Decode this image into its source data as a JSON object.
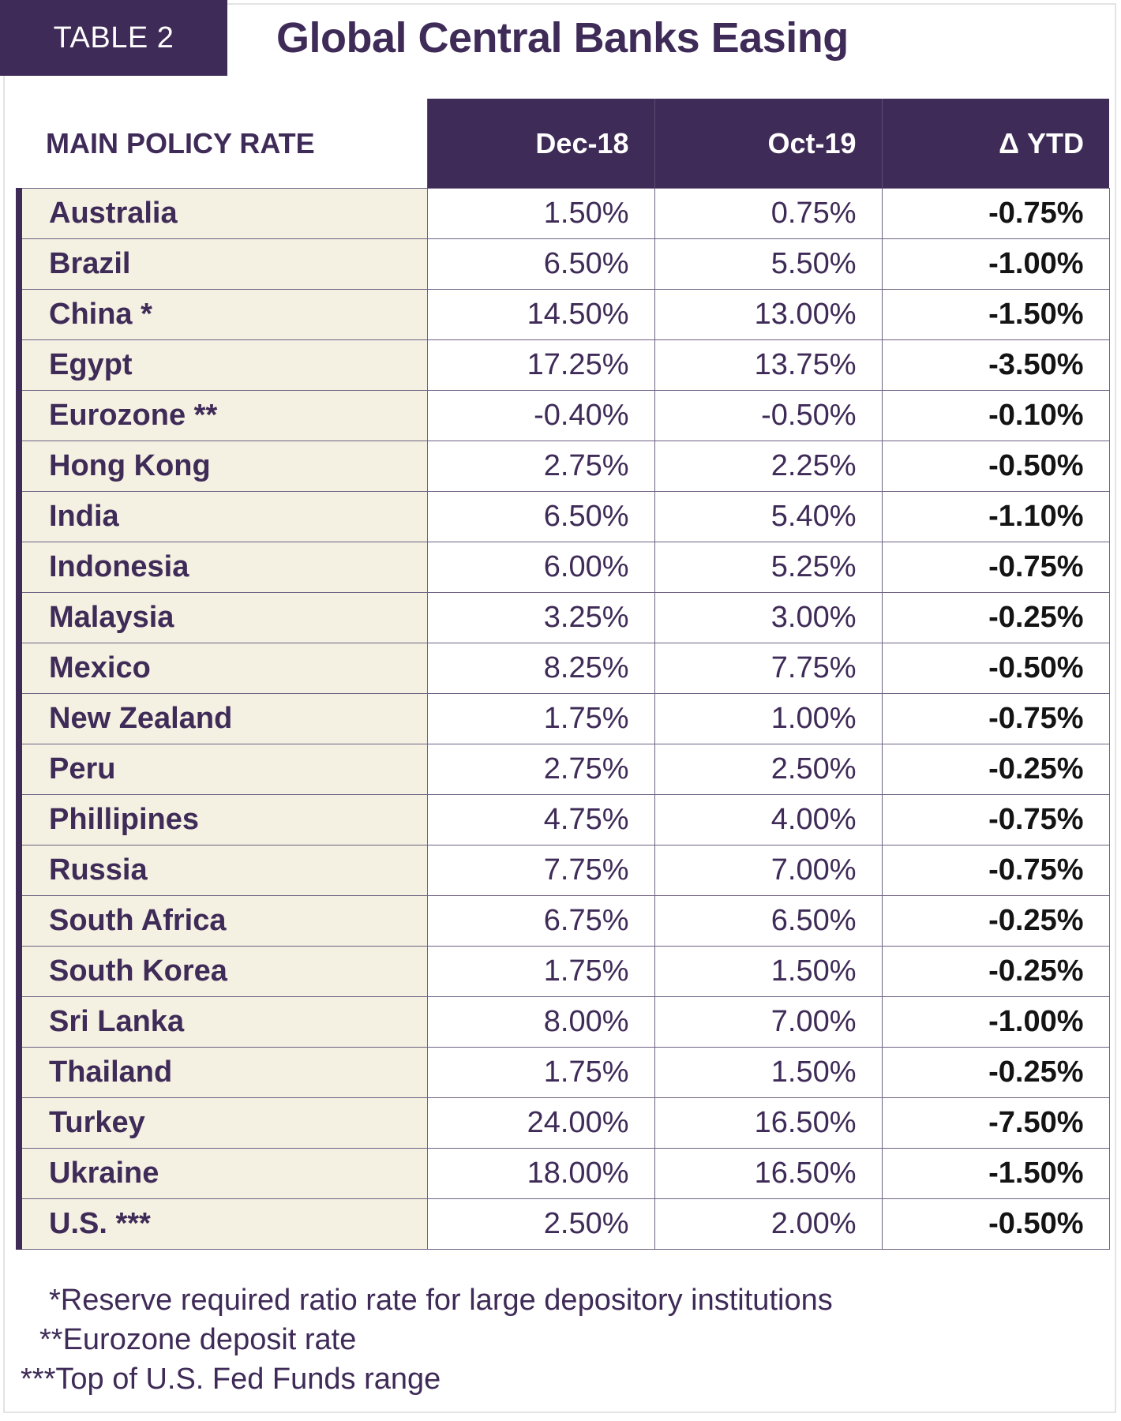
{
  "header": {
    "tag": "TABLE 2",
    "title": "Global Central Banks Easing"
  },
  "table": {
    "columns": [
      "MAIN POLICY RATE",
      "Dec-18",
      "Oct-19",
      "Δ YTD"
    ],
    "rows": [
      {
        "country": "Australia",
        "dec18": "1.50%",
        "oct19": "0.75%",
        "ytd": "-0.75%"
      },
      {
        "country": "Brazil",
        "dec18": "6.50%",
        "oct19": "5.50%",
        "ytd": "-1.00%"
      },
      {
        "country": "China *",
        "dec18": "14.50%",
        "oct19": "13.00%",
        "ytd": "-1.50%"
      },
      {
        "country": "Egypt",
        "dec18": "17.25%",
        "oct19": "13.75%",
        "ytd": "-3.50%"
      },
      {
        "country": "Eurozone **",
        "dec18": "-0.40%",
        "oct19": "-0.50%",
        "ytd": "-0.10%"
      },
      {
        "country": "Hong Kong",
        "dec18": "2.75%",
        "oct19": "2.25%",
        "ytd": "-0.50%"
      },
      {
        "country": "India",
        "dec18": "6.50%",
        "oct19": "5.40%",
        "ytd": "-1.10%"
      },
      {
        "country": "Indonesia",
        "dec18": "6.00%",
        "oct19": "5.25%",
        "ytd": "-0.75%"
      },
      {
        "country": "Malaysia",
        "dec18": "3.25%",
        "oct19": "3.00%",
        "ytd": "-0.25%"
      },
      {
        "country": "Mexico",
        "dec18": "8.25%",
        "oct19": "7.75%",
        "ytd": "-0.50%"
      },
      {
        "country": "New Zealand",
        "dec18": "1.75%",
        "oct19": "1.00%",
        "ytd": "-0.75%"
      },
      {
        "country": "Peru",
        "dec18": "2.75%",
        "oct19": "2.50%",
        "ytd": "-0.25%"
      },
      {
        "country": "Phillipines",
        "dec18": "4.75%",
        "oct19": "4.00%",
        "ytd": "-0.75%"
      },
      {
        "country": "Russia",
        "dec18": "7.75%",
        "oct19": "7.00%",
        "ytd": "-0.75%"
      },
      {
        "country": "South Africa",
        "dec18": "6.75%",
        "oct19": "6.50%",
        "ytd": "-0.25%"
      },
      {
        "country": "South Korea",
        "dec18": "1.75%",
        "oct19": "1.50%",
        "ytd": "-0.25%"
      },
      {
        "country": "Sri Lanka",
        "dec18": "8.00%",
        "oct19": "7.00%",
        "ytd": "-1.00%"
      },
      {
        "country": "Thailand",
        "dec18": "1.75%",
        "oct19": "1.50%",
        "ytd": "-0.25%"
      },
      {
        "country": "Turkey",
        "dec18": "24.00%",
        "oct19": "16.50%",
        "ytd": "-7.50%"
      },
      {
        "country": "Ukraine",
        "dec18": "18.00%",
        "oct19": "16.50%",
        "ytd": "-1.50%"
      },
      {
        "country": "U.S. ***",
        "dec18": "2.50%",
        "oct19": "2.00%",
        "ytd": "-0.50%"
      }
    ]
  },
  "footnotes": [
    "*Reserve required ratio rate for large depository institutions",
    "**Eurozone deposit rate",
    "***Top of U.S. Fed Funds range"
  ],
  "colors": {
    "brand_purple": "#3f2b57",
    "country_column_bg": "#f4f0e2"
  }
}
